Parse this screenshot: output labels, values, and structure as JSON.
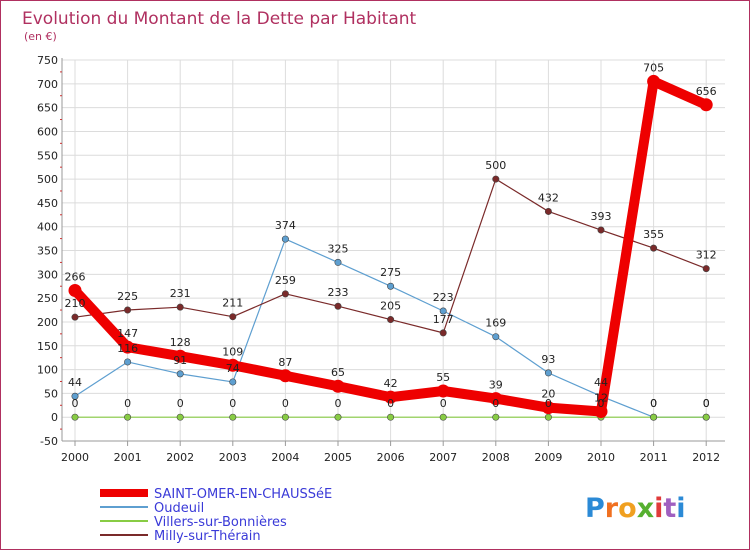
{
  "title": "Evolution du Montant de la Dette par Habitant",
  "subtitle": "(en €)",
  "brand": {
    "text": "Proxiti",
    "letter_colors": [
      "#2b8ad6",
      "#f07020",
      "#f0a020",
      "#56b030",
      "#e03a3a",
      "#a060c0",
      "#2b8ad6"
    ]
  },
  "colors": {
    "frame": "#b03060",
    "grid": "#dcdcdc",
    "axis": "#9a9a9a"
  },
  "chart_data": {
    "type": "line",
    "title": "Evolution du Montant de la Dette par Habitant",
    "subtitle": "(en €)",
    "x": [
      "2000",
      "2001",
      "2002",
      "2003",
      "2004",
      "2005",
      "2006",
      "2007",
      "2008",
      "2009",
      "2010",
      "2011",
      "2012"
    ],
    "ylim": [
      -50,
      750
    ],
    "yticks": [
      -50,
      0,
      50,
      100,
      150,
      200,
      250,
      300,
      350,
      400,
      450,
      500,
      550,
      600,
      650,
      700,
      750
    ],
    "grid": true,
    "legend_position": "bottom-left",
    "series": [
      {
        "name": "SAINT-OMER-EN-CHAUSSéE",
        "color": "#ee0000",
        "thick": true,
        "values": [
          266,
          147,
          128,
          109,
          87,
          65,
          42,
          55,
          39,
          20,
          12,
          705,
          656
        ],
        "labels": [
          "266",
          "147",
          "128",
          "109",
          "87",
          "65",
          "42",
          "55",
          "39",
          "20",
          "12",
          "705",
          "656"
        ]
      },
      {
        "name": "Oudeuil",
        "color": "#5e9fd0",
        "thick": false,
        "values": [
          44,
          116,
          91,
          74,
          374,
          325,
          275,
          223,
          169,
          93,
          44,
          0,
          0
        ],
        "labels": [
          "44",
          "116",
          "91",
          "74",
          "374",
          "325",
          "275",
          "223",
          "169",
          "93",
          "44",
          "0",
          "0"
        ]
      },
      {
        "name": "Villers-sur-Bonnières",
        "color": "#88cc44",
        "thick": false,
        "values": [
          0,
          0,
          0,
          0,
          0,
          0,
          0,
          0,
          0,
          0,
          0,
          0,
          0
        ],
        "labels": [
          "0",
          "0",
          "0",
          "0",
          "0",
          "0",
          "0",
          "0",
          "0",
          "0",
          "0",
          "0",
          "0"
        ]
      },
      {
        "name": "Milly-sur-Thérain",
        "color": "#7a2a2a",
        "thick": false,
        "values": [
          210,
          225,
          231,
          211,
          259,
          233,
          205,
          177,
          500,
          432,
          393,
          355,
          312
        ],
        "labels": [
          "210",
          "225",
          "231",
          "211",
          "259",
          "233",
          "205",
          "177",
          "500",
          "432",
          "393",
          "355",
          "312"
        ]
      }
    ]
  }
}
